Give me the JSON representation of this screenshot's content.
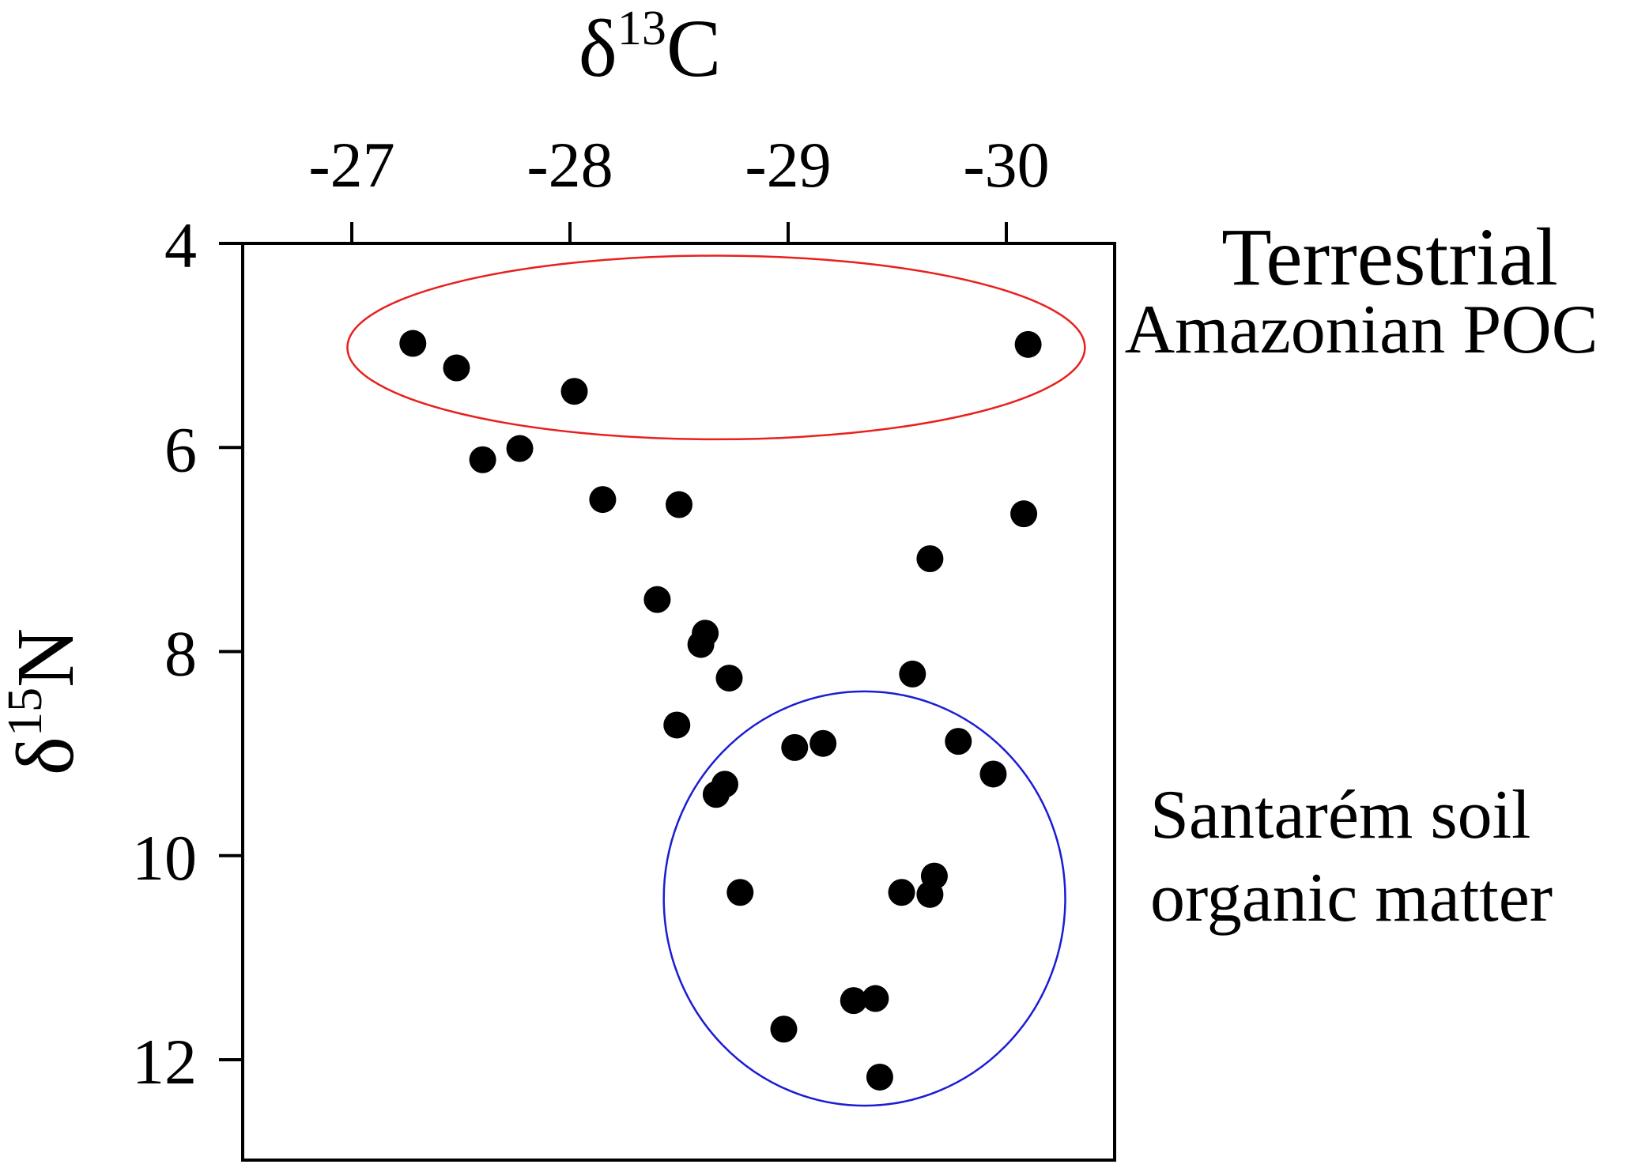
{
  "chart_data": {
    "type": "scatter",
    "xlabel": {
      "base": "δ",
      "sup": "13",
      "tail": "C"
    },
    "ylabel": {
      "base": "δ",
      "sup": "15",
      "tail": "N"
    },
    "x_reversed": true,
    "y_reversed": true,
    "xlim": [
      -26.5,
      -30.5
    ],
    "ylim": [
      4,
      13
    ],
    "x_ticks": [
      -27,
      -28,
      -29,
      -30
    ],
    "x_tick_labels": [
      "-27",
      "-28",
      "-29",
      "-30"
    ],
    "y_ticks": [
      4,
      6,
      8,
      10,
      12
    ],
    "y_tick_labels": [
      "4",
      "6",
      "8",
      "10",
      "12"
    ],
    "x_axis_position": "top",
    "grid": false,
    "marker_color": "#000000",
    "points": [
      {
        "x": -27.28,
        "y": 4.98
      },
      {
        "x": -27.48,
        "y": 5.22
      },
      {
        "x": -27.6,
        "y": 6.12
      },
      {
        "x": -27.77,
        "y": 6.01
      },
      {
        "x": -28.02,
        "y": 5.45
      },
      {
        "x": -28.15,
        "y": 6.51
      },
      {
        "x": -28.4,
        "y": 7.49
      },
      {
        "x": -28.5,
        "y": 6.56
      },
      {
        "x": -28.49,
        "y": 8.72
      },
      {
        "x": -28.62,
        "y": 7.82
      },
      {
        "x": -28.6,
        "y": 7.93
      },
      {
        "x": -28.73,
        "y": 8.26
      },
      {
        "x": -28.67,
        "y": 9.4
      },
      {
        "x": -28.71,
        "y": 9.3
      },
      {
        "x": -28.78,
        "y": 10.36
      },
      {
        "x": -29.03,
        "y": 8.94
      },
      {
        "x": -29.16,
        "y": 8.9
      },
      {
        "x": -28.98,
        "y": 11.7
      },
      {
        "x": -29.3,
        "y": 11.42
      },
      {
        "x": -29.4,
        "y": 11.4
      },
      {
        "x": -29.42,
        "y": 12.17
      },
      {
        "x": -29.52,
        "y": 10.36
      },
      {
        "x": -29.57,
        "y": 8.22
      },
      {
        "x": -29.65,
        "y": 10.38
      },
      {
        "x": -29.67,
        "y": 10.2
      },
      {
        "x": -29.65,
        "y": 7.09
      },
      {
        "x": -29.78,
        "y": 8.88
      },
      {
        "x": -29.94,
        "y": 9.2
      },
      {
        "x": -30.08,
        "y": 6.65
      },
      {
        "x": -30.1,
        "y": 4.99
      }
    ],
    "groups": [
      {
        "shape": "ellipse",
        "color": "#e8201e",
        "cx": -28.67,
        "cy": 5.02,
        "rx": 1.69,
        "ry": 0.9
      },
      {
        "shape": "ellipse",
        "color": "#1c1cd4",
        "cx": -29.35,
        "cy": 10.42,
        "rx": 0.92,
        "ry": 2.03
      }
    ],
    "annotations": [
      {
        "lines": [
          "Terrestrial",
          "Amazonian POC"
        ]
      },
      {
        "lines": [
          "Santarém soil",
          "organic matter"
        ]
      }
    ]
  }
}
